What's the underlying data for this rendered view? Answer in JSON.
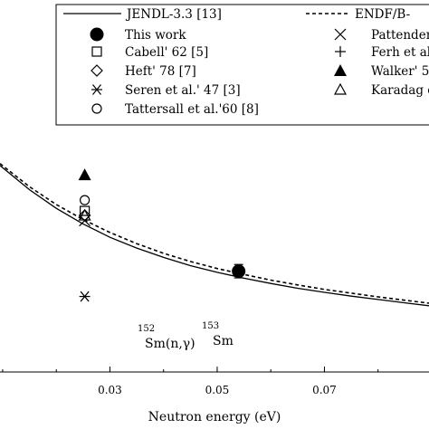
{
  "chart_data": {
    "type": "scatter",
    "xlabel": "Neutron energy (eV)",
    "x_ticks": [
      "0.03",
      "0.05",
      "0.07"
    ],
    "xlim": [
      0.0095,
      0.0895
    ],
    "ylim": [
      0,
      1
    ],
    "annotation": {
      "reaction_mass": "152",
      "reaction": "Sm(n,γ)",
      "product_mass": "153",
      "product": "Sm"
    },
    "legend": [
      {
        "key": "jendl",
        "label": "JENDL-3.3 [13]",
        "marker": "line-solid"
      },
      {
        "key": "endf",
        "label": "ENDF/B-",
        "marker": "line-dashed"
      },
      {
        "key": "this_work",
        "label": "This work",
        "marker": "filled-circle"
      },
      {
        "key": "pattenden",
        "label": "Pattenden",
        "marker": "cross"
      },
      {
        "key": "cabell",
        "label": "Cabell' 62 [5]",
        "marker": "open-square"
      },
      {
        "key": "ferh",
        "label": "Ferh et al",
        "marker": "plus"
      },
      {
        "key": "heft",
        "label": "Heft' 78 [7]",
        "marker": "open-diamond"
      },
      {
        "key": "walker",
        "label": "Walker' 5",
        "marker": "filled-triangle"
      },
      {
        "key": "seren",
        "label": "Seren et al.' 47 [3]",
        "marker": "asterisk"
      },
      {
        "key": "karadag",
        "label": "Karadag ĕ",
        "marker": "open-triangle"
      },
      {
        "key": "tattersall",
        "label": "Tattersall et al.'60 [8]",
        "marker": "open-circle"
      }
    ],
    "curves": [
      {
        "key": "jendl",
        "x": [
          0.0095,
          0.015,
          0.02,
          0.025,
          0.03,
          0.035,
          0.04,
          0.045,
          0.05,
          0.055,
          0.06,
          0.065,
          0.07,
          0.075,
          0.08,
          0.085,
          0.0895
        ],
        "y": [
          0.555,
          0.49,
          0.44,
          0.398,
          0.362,
          0.333,
          0.308,
          0.286,
          0.268,
          0.252,
          0.238,
          0.225,
          0.214,
          0.204,
          0.195,
          0.186,
          0.178
        ]
      },
      {
        "key": "endf",
        "x": [
          0.0095,
          0.015,
          0.02,
          0.025,
          0.03,
          0.035,
          0.04,
          0.045,
          0.05,
          0.055,
          0.06,
          0.065,
          0.07,
          0.075,
          0.08,
          0.085,
          0.0895
        ],
        "y": [
          0.56,
          0.498,
          0.45,
          0.41,
          0.375,
          0.345,
          0.319,
          0.297,
          0.278,
          0.262,
          0.247,
          0.234,
          0.222,
          0.212,
          0.202,
          0.193,
          0.185
        ]
      }
    ],
    "points": [
      {
        "key": "walker",
        "x": 0.0253,
        "y": 0.53
      },
      {
        "key": "tattersall",
        "x": 0.0253,
        "y": 0.462
      },
      {
        "key": "cabell",
        "x": 0.0253,
        "y": 0.433
      },
      {
        "key": "heft",
        "x": 0.0253,
        "y": 0.421
      },
      {
        "key": "karadag",
        "x": 0.0253,
        "y": 0.421
      },
      {
        "key": "pattenden",
        "x": 0.0253,
        "y": 0.407
      },
      {
        "key": "seren",
        "x": 0.0253,
        "y": 0.203
      },
      {
        "key": "this_work",
        "x": 0.054,
        "y": 0.271,
        "err": 0.018
      }
    ]
  }
}
